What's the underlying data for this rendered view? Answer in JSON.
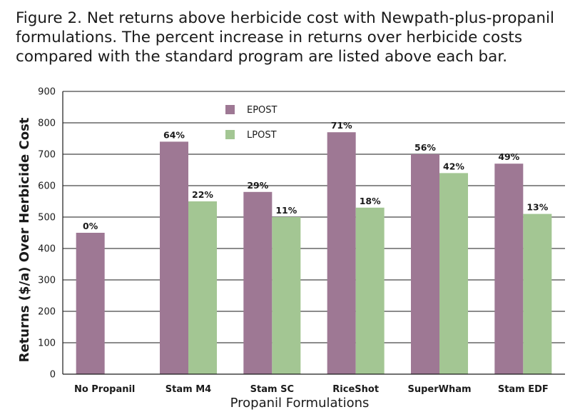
{
  "chart_data": {
    "type": "bar",
    "title": "Figure 2. Net returns above herbicide cost with Newpath-plus-propanil formulations. The percent increase in returns over herbicide costs compared with the standard program are listed above each bar.",
    "xlabel": "Propanil Formulations",
    "ylabel": "Returns ($/a) Over Herbicide Cost",
    "ylim": [
      0,
      900
    ],
    "yticks": [
      0,
      100,
      200,
      300,
      400,
      500,
      600,
      700,
      800,
      900
    ],
    "grid": true,
    "legend_position": "top-left",
    "categories": [
      "No Propanil",
      "Stam M4",
      "Stam SC",
      "RiceShot",
      "SuperWham",
      "Stam EDF"
    ],
    "series": [
      {
        "name": "EPOST",
        "color": "#9e7894",
        "values": [
          450,
          740,
          580,
          770,
          700,
          670
        ],
        "labels": [
          "0%",
          "64%",
          "29%",
          "71%",
          "56%",
          "49%"
        ]
      },
      {
        "name": "LPOST",
        "color": "#a3c693",
        "values": [
          null,
          550,
          500,
          530,
          640,
          510
        ],
        "labels": [
          "",
          "22%",
          "11%",
          "18%",
          "42%",
          "13%"
        ]
      }
    ]
  }
}
